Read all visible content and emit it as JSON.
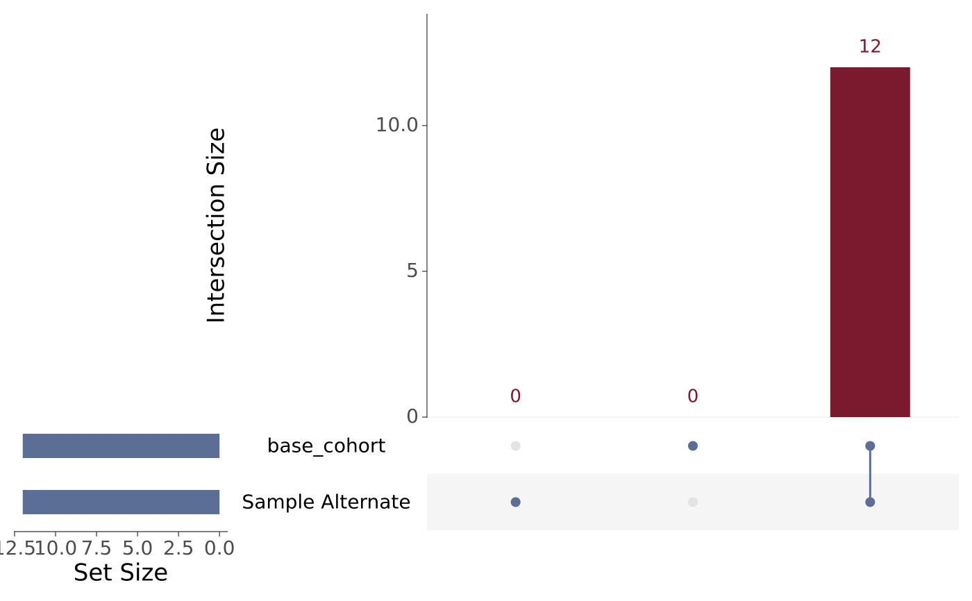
{
  "chart_data": {
    "type": "upset",
    "intersections": {
      "ylabel": "Intersection Size",
      "values": [
        0,
        0,
        12
      ],
      "color": "#7b1a2e",
      "ylim": [
        0,
        13.83
      ],
      "yticks": [
        0,
        5,
        {
          "value": 10,
          "label": "10.0"
        }
      ]
    },
    "sets": {
      "names": [
        "base_cohort",
        "Sample Alternate"
      ],
      "values": [
        12,
        12
      ],
      "color": "#5b6f96",
      "xlabel": "Set Size",
      "xlim": [
        12.54,
        -0.5
      ],
      "xticks": [
        12.5,
        {
          "value": 10,
          "label": "10.0"
        },
        7.5,
        {
          "value": 5,
          "label": "5.0"
        },
        2.5,
        {
          "value": 0,
          "label": "0.0"
        }
      ]
    },
    "matrix": [
      [
        0,
        1,
        1
      ],
      [
        1,
        0,
        1
      ]
    ],
    "matrix_colors": {
      "active": "#5b6f96",
      "inactive": "#e3e3e3",
      "shade": "#f5f5f5"
    }
  }
}
